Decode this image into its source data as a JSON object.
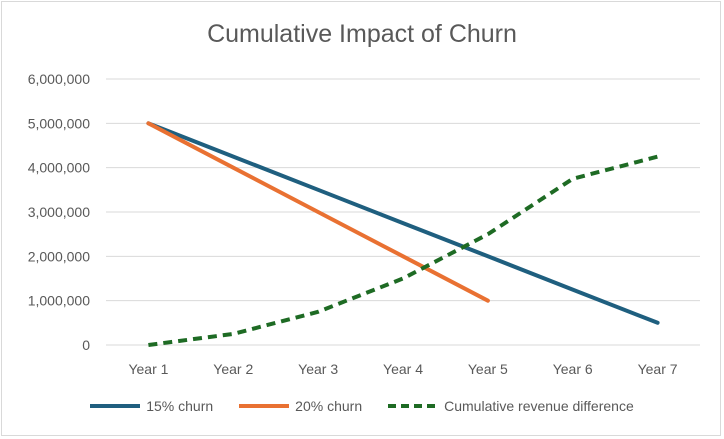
{
  "chart_data": {
    "type": "line",
    "title": "Cumulative Impact of Churn",
    "categories": [
      "Year 1",
      "Year 2",
      "Year 3",
      "Year 4",
      "Year 5",
      "Year 6",
      "Year 7"
    ],
    "y_ticks": [
      "0",
      "1,000,000",
      "2,000,000",
      "3,000,000",
      "4,000,000",
      "5,000,000",
      "6,000,000"
    ],
    "ylim": [
      0,
      6000000
    ],
    "grid": true,
    "legend_position": "bottom",
    "series": [
      {
        "name": "15% churn",
        "color": "#1f5f7f",
        "dash": "solid",
        "values": [
          5000000,
          4250000,
          3500000,
          2750000,
          2000000,
          1250000,
          500000
        ]
      },
      {
        "name": "20% churn",
        "color": "#e97132",
        "dash": "solid",
        "values": [
          5000000,
          4000000,
          3000000,
          2000000,
          1000000,
          null,
          null
        ]
      },
      {
        "name": "Cumulative revenue difference",
        "color": "#1e6b24",
        "dash": "dashed",
        "values": [
          0,
          250000,
          750000,
          1500000,
          2500000,
          3750000,
          4250000
        ]
      }
    ]
  }
}
